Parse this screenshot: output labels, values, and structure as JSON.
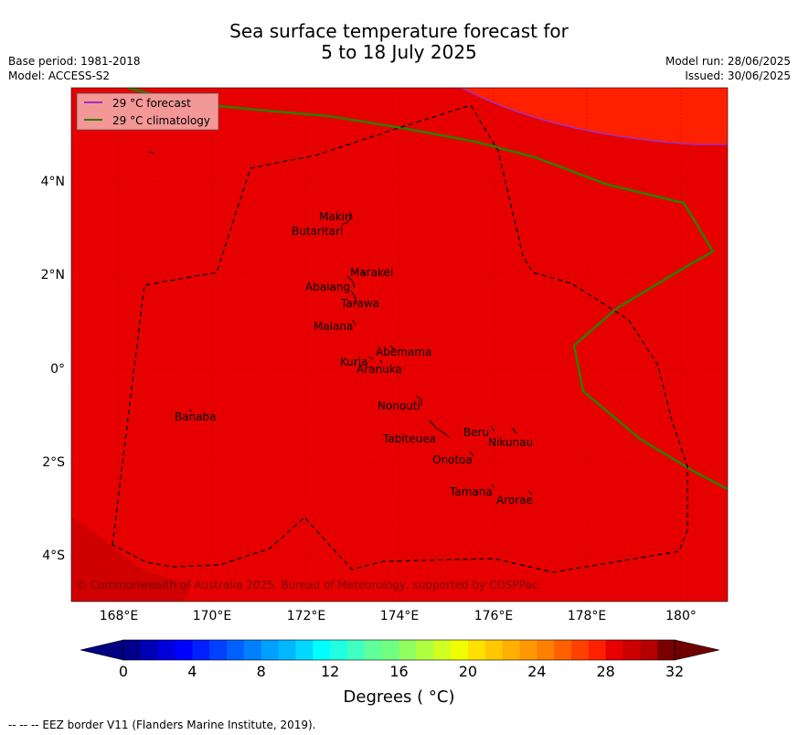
{
  "header": {
    "title_line1": "Sea surface temperature forecast for",
    "title_line2": "5 to 18 July 2025",
    "base_period": "Base period: 1981-2018",
    "model": "Model: ACCESS-S2",
    "model_run": "Model run: 28/06/2025",
    "issued": "Issued: 30/06/2025"
  },
  "map": {
    "lon_ticks": [
      "168°E",
      "170°E",
      "172°E",
      "174°E",
      "176°E",
      "178°E",
      "180°"
    ],
    "lat_ticks": [
      "4°N",
      "2°N",
      "0°",
      "2°S",
      "4°S"
    ],
    "islands": [
      "Makin",
      "Butaritari",
      "Marakei",
      "Abaiang",
      "Tarawa",
      "Maiana",
      "Abemama",
      "Kuria",
      "Aranuka",
      "Nonouti",
      "Banaba",
      "Beru",
      "Nikunau",
      "Tabiteuea",
      "Onotoa",
      "Tamana",
      "Arorae"
    ],
    "copyright": "© Commonwealth of Australia 2025, Bureau of Meteorology, supported by COSPPac",
    "legend": {
      "forecast_label": "29 °C  forecast",
      "climatology_label": "29 °C  climatology",
      "forecast_color": "#9b30c8",
      "climatology_color": "#2e7d00"
    },
    "fill_colors": {
      "main": "#e60000",
      "warmer": "#ff2000",
      "cooler": "#d00000"
    }
  },
  "colorbar": {
    "tick_labels": [
      "0",
      "4",
      "8",
      "12",
      "16",
      "20",
      "24",
      "28",
      "32"
    ],
    "label": "Degrees ( °C)",
    "min": 0,
    "max": 32,
    "step": 1,
    "colors": [
      "#00008c",
      "#0000b4",
      "#0000dc",
      "#0000ff",
      "#0020ff",
      "#0040ff",
      "#0060ff",
      "#0080ff",
      "#00a0ff",
      "#00b8ff",
      "#00d8ff",
      "#00ffff",
      "#20ffe0",
      "#40ffc0",
      "#60ff9a",
      "#70ff80",
      "#90ff60",
      "#b0ff40",
      "#d0ff20",
      "#f0ff00",
      "#ffe000",
      "#ffc800",
      "#ffb000",
      "#ff9800",
      "#ff8000",
      "#ff6000",
      "#ff4000",
      "#ff2000",
      "#e60000",
      "#cc0000",
      "#b40000",
      "#7a0000"
    ],
    "under_color": "#000080",
    "over_color": "#700000"
  },
  "footnote": "--  --  -- EEZ border V11 (Flanders Marine Institute, 2019)."
}
